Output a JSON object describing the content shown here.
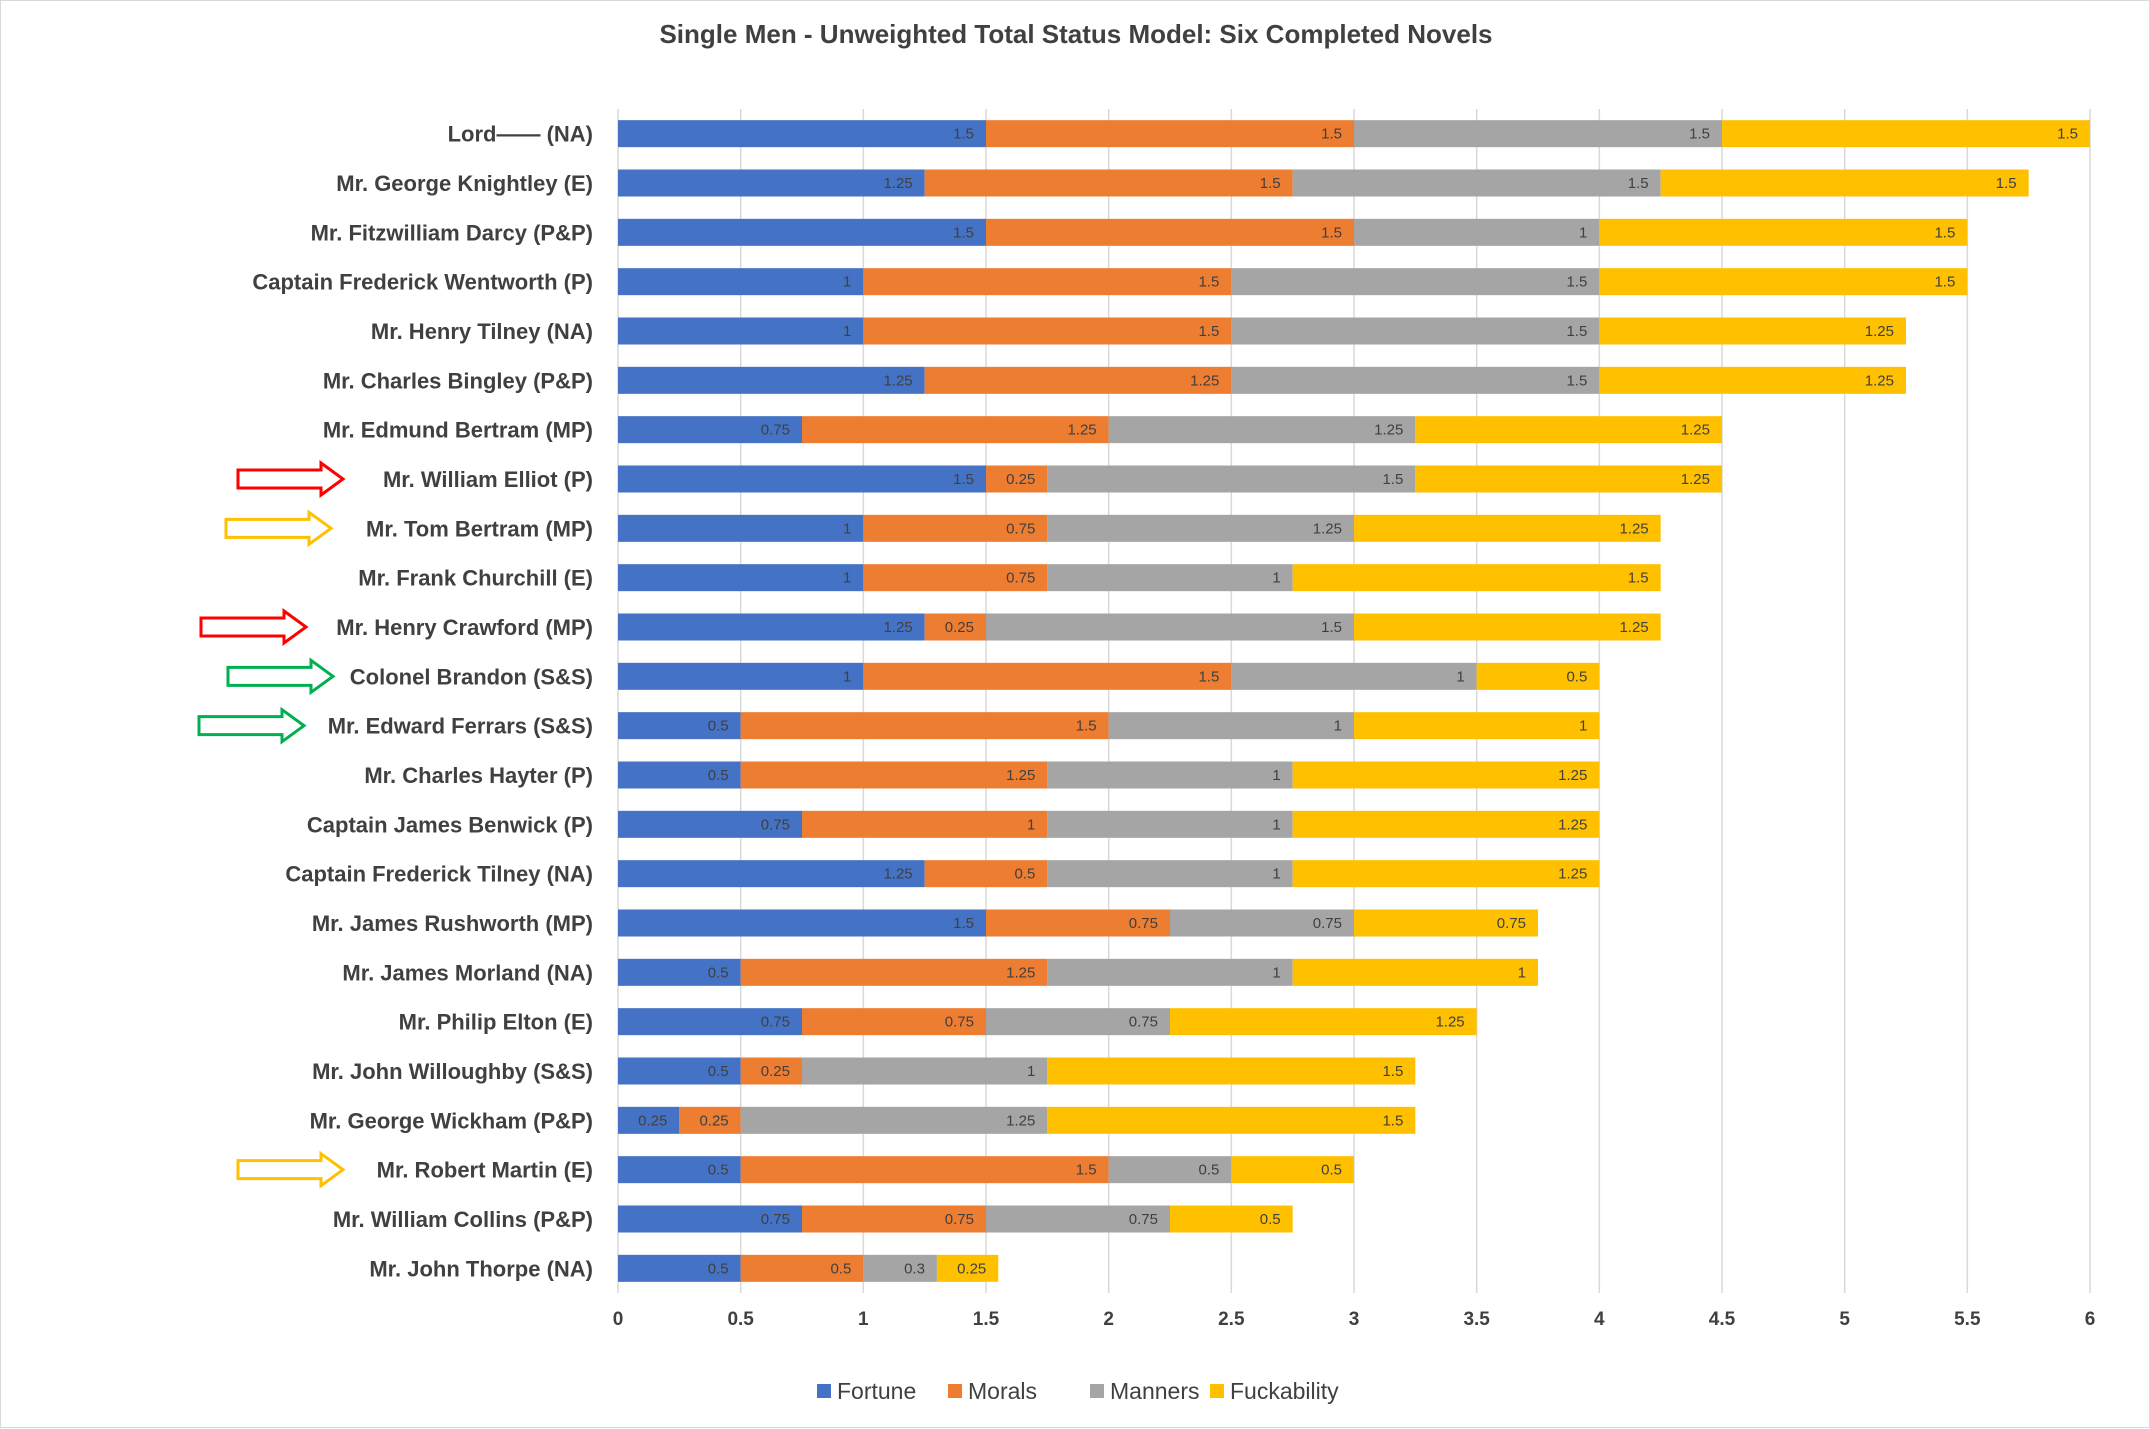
{
  "chart_data": {
    "type": "bar",
    "orientation": "horizontal",
    "stacked": true,
    "title": "Single Men - Unweighted Total Status Model: Six Completed Novels",
    "xlabel": "",
    "ylabel": "",
    "xlim": [
      0,
      6
    ],
    "xticks": [
      "0",
      "0.5",
      "1",
      "1.5",
      "2",
      "2.5",
      "3",
      "3.5",
      "4",
      "4.5",
      "5",
      "5.5",
      "6"
    ],
    "grid": true,
    "legend_position": "bottom",
    "categories": [
      "Lord—— (NA)",
      "Mr. George Knightley (E)",
      "Mr. Fitzwilliam Darcy (P&P)",
      "Captain Frederick Wentworth (P)",
      "Mr. Henry Tilney (NA)",
      "Mr. Charles Bingley (P&P)",
      "Mr. Edmund Bertram (MP)",
      "Mr. William Elliot (P)",
      "Mr. Tom Bertram (MP)",
      "Mr. Frank Churchill (E)",
      "Mr. Henry Crawford (MP)",
      "Colonel Brandon (S&S)",
      "Mr. Edward Ferrars (S&S)",
      "Mr. Charles Hayter (P)",
      "Captain James Benwick (P)",
      "Captain Frederick Tilney (NA)",
      "Mr. James Rushworth (MP)",
      "Mr. James Morland (NA)",
      "Mr. Philip Elton (E)",
      "Mr. John Willoughby (S&S)",
      "Mr. George Wickham (P&P)",
      "Mr. Robert Martin (E)",
      "Mr. William Collins (P&P)",
      "Mr. John Thorpe (NA)"
    ],
    "series": [
      {
        "name": "Fortune",
        "color": "#4472C4",
        "values": [
          1.5,
          1.25,
          1.5,
          1,
          1,
          1.25,
          0.75,
          1.5,
          1,
          1,
          1.25,
          1,
          0.5,
          0.5,
          0.75,
          1.25,
          1.5,
          0.5,
          0.75,
          0.5,
          0.25,
          0.5,
          0.75,
          0.5
        ]
      },
      {
        "name": "Morals",
        "color": "#ED7D31",
        "values": [
          1.5,
          1.5,
          1.5,
          1.5,
          1.5,
          1.25,
          1.25,
          0.25,
          0.75,
          0.75,
          0.25,
          1.5,
          1.5,
          1.25,
          1,
          0.5,
          0.75,
          1.25,
          0.75,
          0.25,
          0.25,
          1.5,
          0.75,
          0.5
        ]
      },
      {
        "name": "Manners",
        "color": "#A5A5A5",
        "values": [
          1.5,
          1.5,
          1,
          1.5,
          1.5,
          1.5,
          1.25,
          1.5,
          1.25,
          1,
          1.5,
          1,
          1,
          1,
          1,
          1,
          0.75,
          1,
          0.75,
          1,
          1.25,
          0.5,
          0.75,
          0.3
        ]
      },
      {
        "name": "Fuckability",
        "color": "#FFC000",
        "values": [
          1.5,
          1.5,
          1.5,
          1.5,
          1.25,
          1.25,
          1.25,
          1.25,
          1.25,
          1.5,
          1.25,
          0.5,
          1,
          1.25,
          1.25,
          1.25,
          0.75,
          1,
          1.25,
          1.5,
          1.5,
          0.5,
          0.5,
          0.25
        ]
      }
    ],
    "annotations": [
      {
        "type": "arrow",
        "category": "Mr. William Elliot (P)",
        "color": "#FF0000"
      },
      {
        "type": "arrow",
        "category": "Mr. Tom Bertram (MP)",
        "color": "#FFC000"
      },
      {
        "type": "arrow",
        "category": "Mr. Henry Crawford (MP)",
        "color": "#FF0000"
      },
      {
        "type": "arrow",
        "category": "Colonel Brandon (S&S)",
        "color": "#00B050"
      },
      {
        "type": "arrow",
        "category": "Mr. Edward Ferrars (S&S)",
        "color": "#00B050"
      },
      {
        "type": "arrow",
        "category": "Mr. Robert Martin (E)",
        "color": "#FFC000"
      }
    ]
  }
}
